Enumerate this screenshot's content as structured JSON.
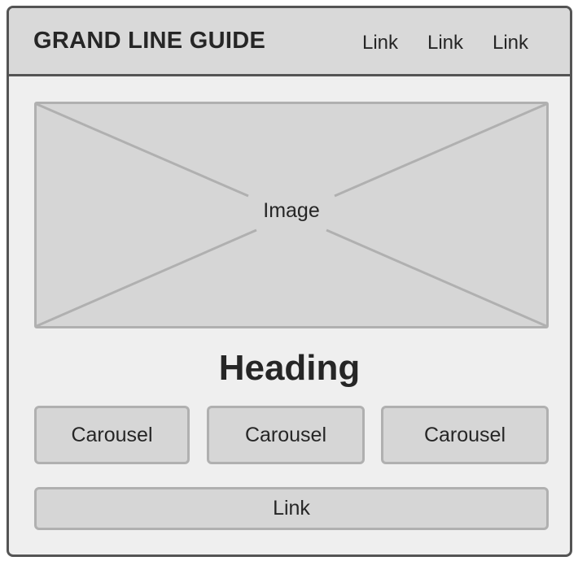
{
  "header": {
    "brand": "GRAND LINE GUIDE",
    "nav_links": [
      "Link",
      "Link",
      "Link"
    ]
  },
  "hero": {
    "placeholder_label": "Image",
    "icon": "image-placeholder-cross-icon"
  },
  "main": {
    "heading": "Heading",
    "carousels": [
      "Carousel",
      "Carousel",
      "Carousel"
    ],
    "bottom_link": "Link"
  },
  "colors": {
    "frame_border": "#545454",
    "page_bg": "#efefef",
    "header_bg": "#d9d9d9",
    "block_bg": "#d6d6d6",
    "block_border": "#b0b0b0",
    "text": "#262626"
  }
}
